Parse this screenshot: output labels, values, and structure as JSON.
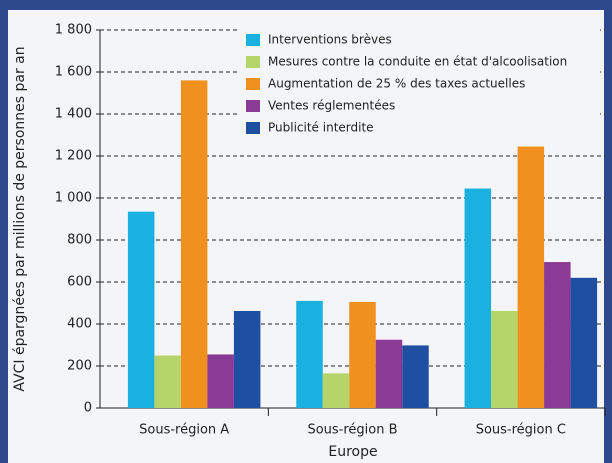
{
  "chart_data": {
    "type": "bar",
    "xlabel": "Europe",
    "ylabel": "AVCI épargnées par millions de personnes par an",
    "categories": [
      "Sous-région A",
      "Sous-région B",
      "Sous-région C"
    ],
    "series": [
      {
        "name": "Interventions brèves",
        "color": "#1ab0e0",
        "values": [
          935,
          510,
          1045
        ]
      },
      {
        "name": "Mesures contre la conduite en état d'alcoolisation",
        "color": "#b5d56a",
        "values": [
          250,
          165,
          462
        ]
      },
      {
        "name": "Augmentation de 25 % des taxes actuelles",
        "color": "#f0901e",
        "values": [
          1560,
          505,
          1245
        ]
      },
      {
        "name": "Ventes réglementées",
        "color": "#8b3a96",
        "values": [
          255,
          325,
          695
        ]
      },
      {
        "name": "Publicité interdite",
        "color": "#1f4fa0",
        "values": [
          462,
          298,
          620
        ]
      }
    ],
    "ylim": [
      0,
      1800
    ],
    "yticks": [
      0,
      200,
      400,
      600,
      800,
      {
        "value": 1000,
        "label": "1 000"
      },
      {
        "value": 1200,
        "label": "1 200"
      },
      {
        "value": 1400,
        "label": "1 400"
      },
      {
        "value": 1600,
        "label": "1 600"
      },
      {
        "value": 1800,
        "label": "1 800"
      }
    ],
    "grid": true,
    "legend": "top"
  }
}
